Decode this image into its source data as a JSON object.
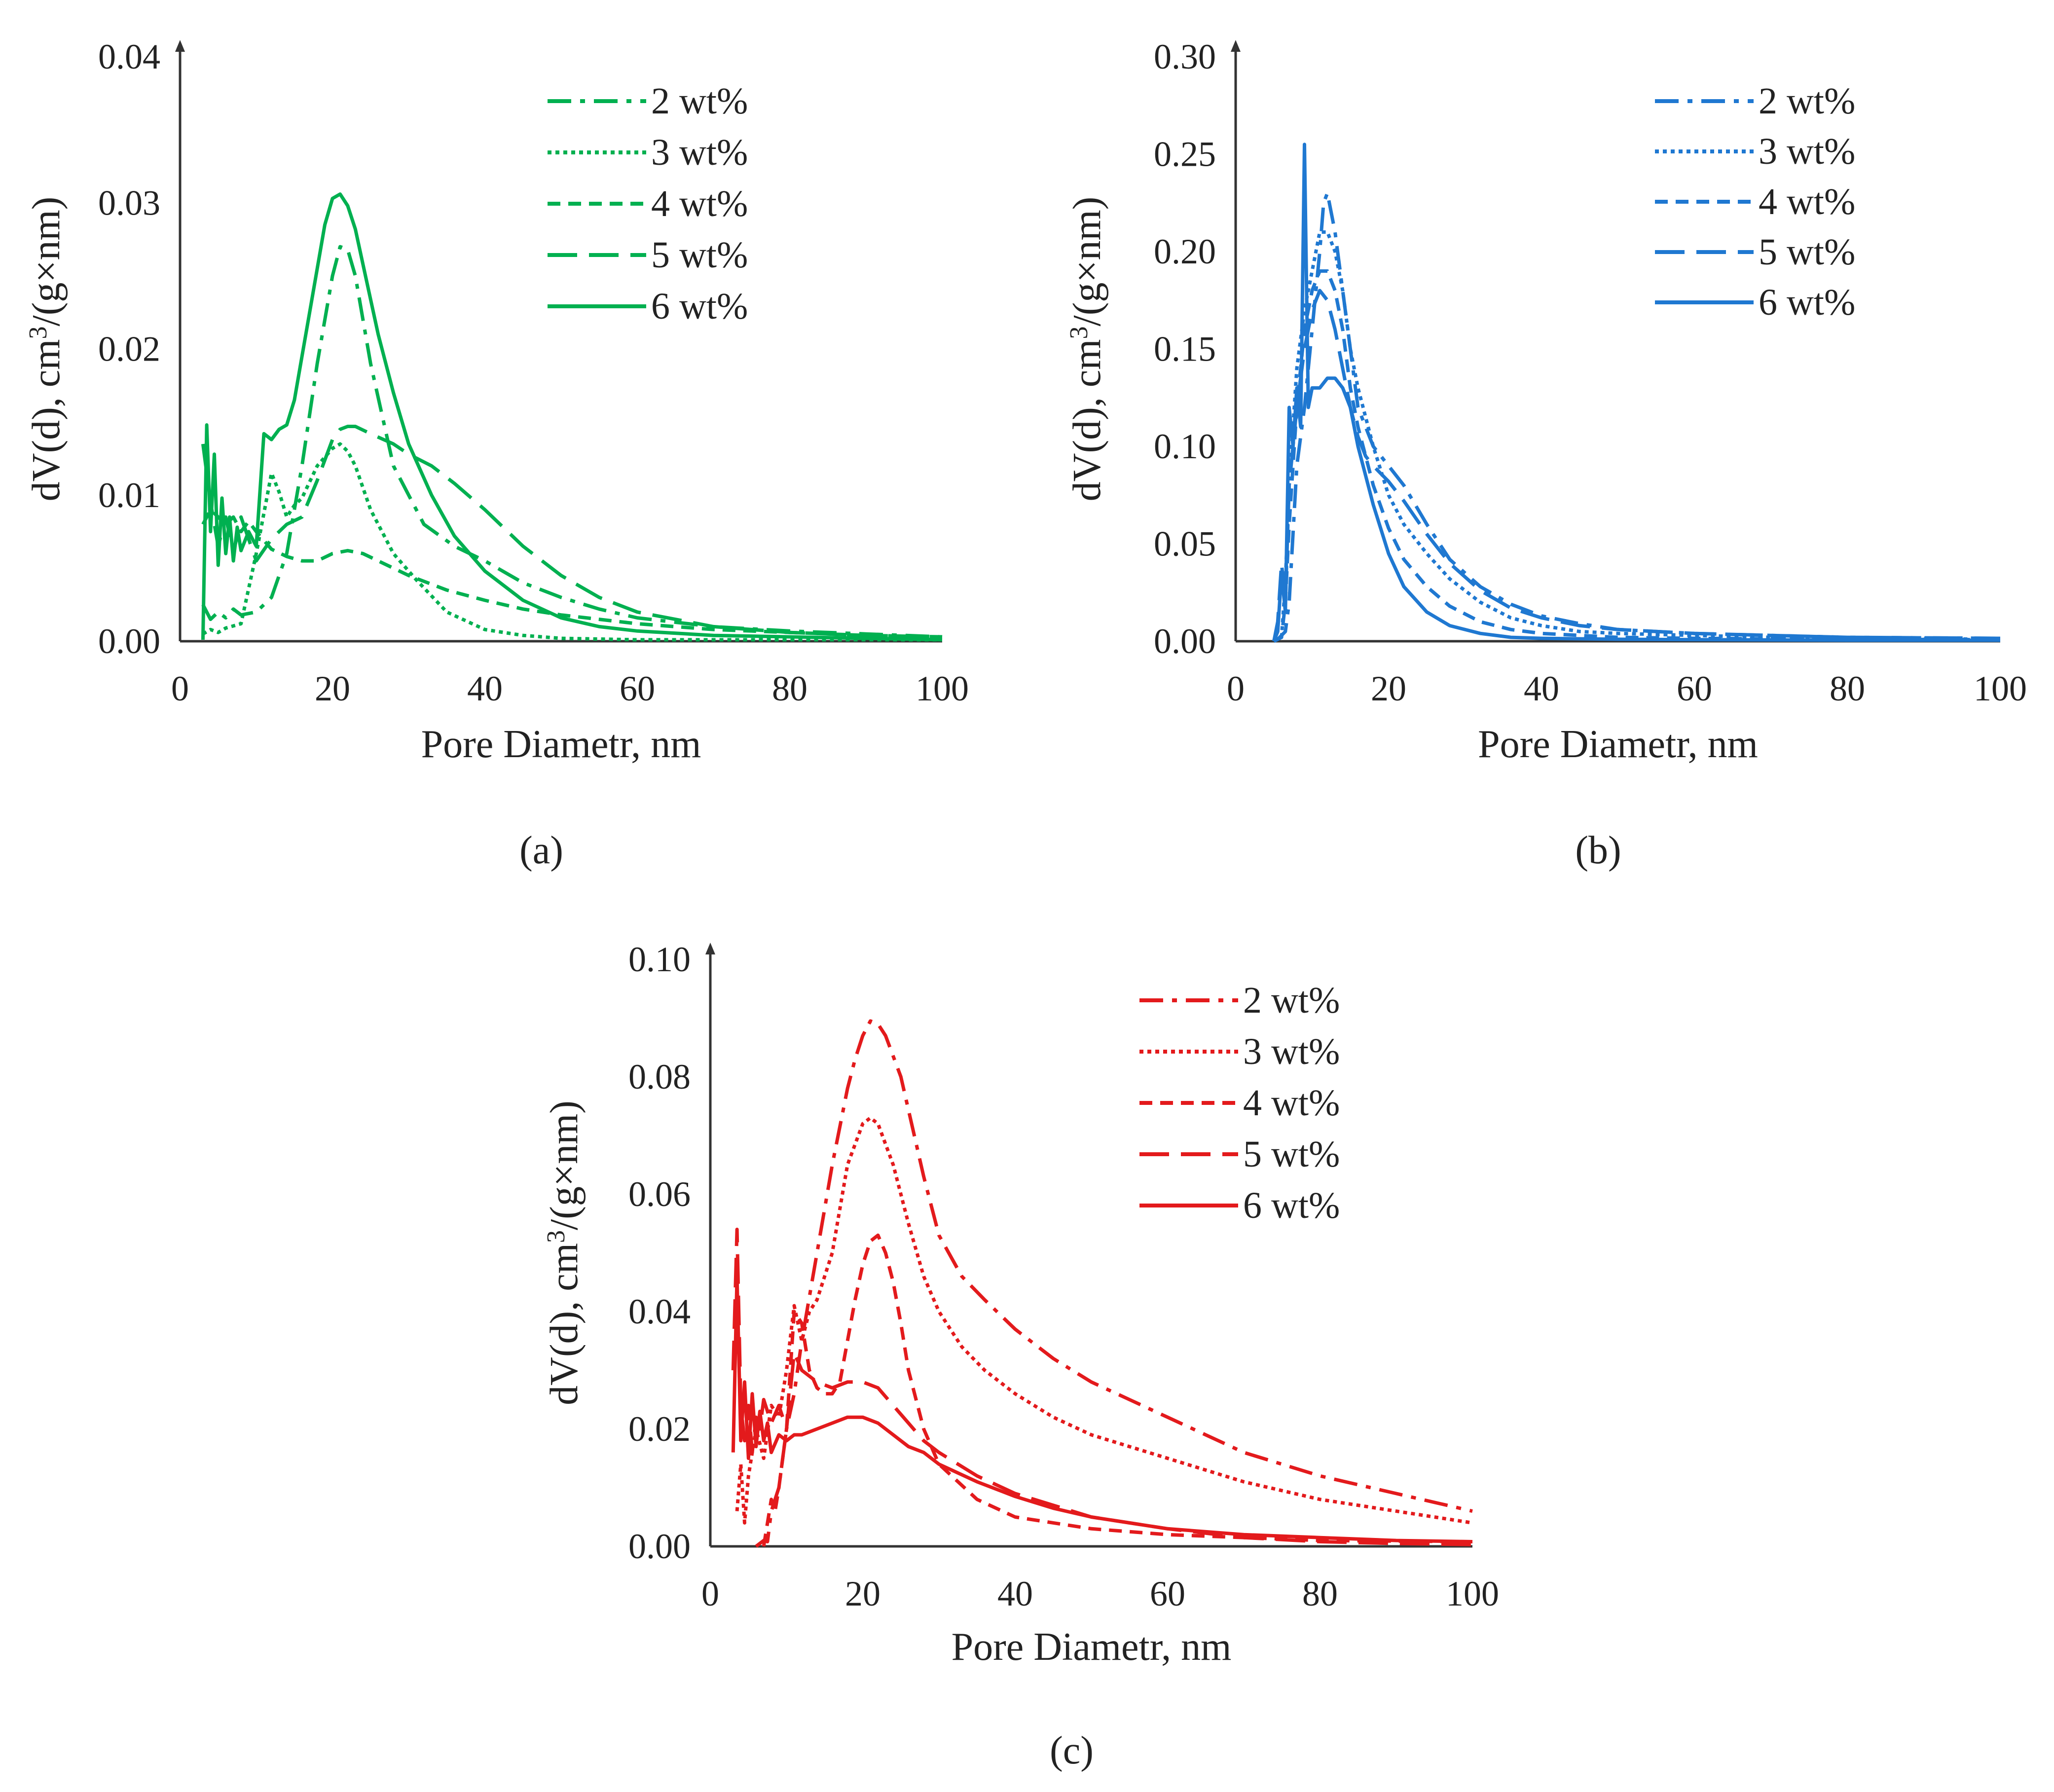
{
  "chart_data": [
    {
      "type": "line",
      "panel_label": "(a)",
      "xlabel": "Pore Diametr, nm",
      "ylabel_pre": "dV(d), cm",
      "ylabel_sup": "3",
      "ylabel_post": "/(g×nm)",
      "xlim": [
        0,
        100
      ],
      "ylim": [
        0,
        0.04
      ],
      "xticks": [
        "0",
        "20",
        "40",
        "60",
        "80",
        "100"
      ],
      "yticks": [
        "0.00",
        "0.01",
        "0.02",
        "0.03",
        "0.04"
      ],
      "color": "#00b050",
      "series": [
        {
          "name": "2 wt%",
          "dash": "dashdot",
          "x": [
            3,
            4,
            5,
            6,
            7,
            8,
            10,
            12,
            14,
            16,
            18,
            20,
            21,
            22,
            23,
            25,
            28,
            32,
            36,
            40,
            45,
            50,
            55,
            60,
            70,
            80,
            90,
            100
          ],
          "y": [
            0.0025,
            0.0015,
            0.002,
            0.0016,
            0.0022,
            0.0018,
            0.002,
            0.003,
            0.006,
            0.012,
            0.019,
            0.025,
            0.027,
            0.0268,
            0.025,
            0.019,
            0.012,
            0.008,
            0.0065,
            0.0055,
            0.004,
            0.003,
            0.0022,
            0.0016,
            0.001,
            0.0007,
            0.0005,
            0.0003
          ]
        },
        {
          "name": "3 wt%",
          "dash": "dot",
          "x": [
            3,
            4,
            5,
            6,
            8,
            10,
            12,
            13,
            14,
            15,
            16,
            18,
            20,
            21,
            22,
            23,
            25,
            28,
            31,
            35,
            40,
            45,
            50,
            60,
            70,
            80,
            100
          ],
          "y": [
            0.0005,
            0.0008,
            0.0006,
            0.0009,
            0.0012,
            0.006,
            0.0115,
            0.0102,
            0.0085,
            0.0093,
            0.0098,
            0.012,
            0.0132,
            0.0135,
            0.013,
            0.012,
            0.009,
            0.006,
            0.0042,
            0.002,
            0.0008,
            0.0004,
            0.0002,
            0.0001,
            0.0001,
            0.0001,
            0.0001
          ]
        },
        {
          "name": "4 wt%",
          "dash": "dash",
          "x": [
            3,
            4,
            5,
            6,
            7,
            8,
            9,
            10,
            12,
            14,
            16,
            18,
            20,
            22,
            24,
            26,
            30,
            35,
            40,
            45,
            50,
            60,
            70,
            80,
            90,
            100
          ],
          "y": [
            0.008,
            0.009,
            0.0085,
            0.008,
            0.0085,
            0.0075,
            0.0082,
            0.0075,
            0.0063,
            0.0058,
            0.0055,
            0.0055,
            0.006,
            0.0062,
            0.006,
            0.0055,
            0.0045,
            0.0035,
            0.0028,
            0.0022,
            0.0018,
            0.0012,
            0.0008,
            0.0006,
            0.0004,
            0.0003
          ]
        },
        {
          "name": "5 wt%",
          "dash": "longdash",
          "x": [
            3,
            4,
            5,
            6,
            7,
            8,
            10,
            12,
            14,
            16,
            18,
            20,
            21,
            22,
            23,
            25,
            28,
            30,
            33,
            36,
            40,
            45,
            50,
            55,
            60,
            70,
            80,
            90,
            100
          ],
          "y": [
            0.0135,
            0.0095,
            0.0065,
            0.0085,
            0.006,
            0.0085,
            0.0055,
            0.007,
            0.008,
            0.0085,
            0.011,
            0.0138,
            0.0145,
            0.0147,
            0.0147,
            0.0142,
            0.0135,
            0.0128,
            0.012,
            0.0108,
            0.009,
            0.0065,
            0.0045,
            0.003,
            0.002,
            0.001,
            0.0006,
            0.0004,
            0.0003
          ]
        },
        {
          "name": "6 wt%",
          "dash": "solid",
          "x": [
            3,
            3.5,
            4,
            4.5,
            5,
            5.5,
            6,
            6.5,
            7,
            7.5,
            8,
            9,
            10,
            11,
            12,
            13,
            14,
            15,
            16,
            17,
            18,
            19,
            20,
            21,
            22,
            23,
            24,
            26,
            28,
            30,
            33,
            36,
            40,
            45,
            50,
            55,
            60,
            70,
            80,
            90,
            100
          ],
          "y": [
            0.0001,
            0.0148,
            0.0075,
            0.0128,
            0.0052,
            0.0098,
            0.006,
            0.0085,
            0.0055,
            0.0078,
            0.0062,
            0.0075,
            0.0065,
            0.0142,
            0.0138,
            0.0145,
            0.0148,
            0.0165,
            0.0195,
            0.0225,
            0.0255,
            0.0285,
            0.0303,
            0.0306,
            0.0298,
            0.0282,
            0.0258,
            0.021,
            0.017,
            0.0135,
            0.01,
            0.0072,
            0.0048,
            0.0028,
            0.0016,
            0.001,
            0.0007,
            0.0004,
            0.0003,
            0.0002,
            0.0001
          ]
        }
      ]
    },
    {
      "type": "line",
      "panel_label": "(b)",
      "xlabel": "Pore Diametr, nm",
      "ylabel_pre": "dV(d), cm",
      "ylabel_sup": "3",
      "ylabel_post": "/(g×nm)",
      "xlim": [
        0,
        100
      ],
      "ylim": [
        0,
        0.3
      ],
      "xticks": [
        "0",
        "20",
        "40",
        "60",
        "80",
        "100"
      ],
      "yticks": [
        "0.00",
        "0.05",
        "0.10",
        "0.15",
        "0.20",
        "0.25",
        "0.30"
      ],
      "color": "#1f78d1",
      "series": [
        {
          "name": "2 wt%",
          "dash": "dashdot",
          "x": [
            5,
            5.5,
            6,
            6.5,
            7,
            8,
            9,
            10,
            11,
            11.5,
            12,
            13,
            14,
            15,
            16,
            18,
            20,
            22,
            25,
            28,
            32,
            36,
            40,
            45,
            50,
            60,
            70,
            80,
            100
          ],
          "y": [
            0,
            0.001,
            0.003,
            0.005,
            0.02,
            0.09,
            0.12,
            0.16,
            0.2,
            0.225,
            0.23,
            0.21,
            0.18,
            0.15,
            0.12,
            0.1,
            0.09,
            0.08,
            0.06,
            0.042,
            0.028,
            0.019,
            0.013,
            0.009,
            0.006,
            0.004,
            0.003,
            0.002,
            0.0015
          ]
        },
        {
          "name": "3 wt%",
          "dash": "dot",
          "x": [
            5,
            6,
            6.5,
            7,
            8,
            9,
            10,
            11,
            12,
            13,
            14,
            15,
            16,
            18,
            20,
            22,
            25,
            28,
            32,
            36,
            40,
            45,
            50,
            60,
            70,
            80,
            100
          ],
          "y": [
            0,
            0.002,
            0.03,
            0.08,
            0.14,
            0.17,
            0.19,
            0.21,
            0.21,
            0.2,
            0.18,
            0.15,
            0.13,
            0.1,
            0.075,
            0.06,
            0.045,
            0.032,
            0.02,
            0.012,
            0.008,
            0.005,
            0.004,
            0.003,
            0.002,
            0.0015,
            0.001
          ]
        },
        {
          "name": "4 wt%",
          "dash": "dash",
          "x": [
            5,
            6,
            6.5,
            7,
            8,
            9,
            10,
            11,
            12,
            13,
            14,
            15,
            16,
            18,
            20,
            22,
            25,
            28,
            32,
            36,
            40,
            50,
            60,
            80,
            100
          ],
          "y": [
            0,
            0.002,
            0.02,
            0.06,
            0.12,
            0.16,
            0.18,
            0.19,
            0.19,
            0.18,
            0.16,
            0.13,
            0.11,
            0.08,
            0.058,
            0.042,
            0.028,
            0.018,
            0.01,
            0.006,
            0.004,
            0.002,
            0.0015,
            0.001,
            0.0008
          ]
        },
        {
          "name": "5 wt%",
          "dash": "longdash",
          "x": [
            5,
            5.5,
            6,
            6.5,
            7,
            8,
            9,
            10,
            11,
            12,
            13,
            14,
            15,
            16,
            17,
            18,
            20,
            22,
            25,
            28,
            32,
            36,
            40,
            45,
            50,
            60,
            70,
            80,
            100
          ],
          "y": [
            0,
            0.01,
            0.04,
            0.02,
            0.08,
            0.12,
            0.15,
            0.17,
            0.18,
            0.175,
            0.16,
            0.14,
            0.12,
            0.105,
            0.095,
            0.09,
            0.082,
            0.072,
            0.055,
            0.04,
            0.026,
            0.017,
            0.012,
            0.008,
            0.006,
            0.004,
            0.003,
            0.002,
            0.0015
          ]
        },
        {
          "name": "6 wt%",
          "dash": "solid",
          "x": [
            5,
            5.5,
            6,
            6.5,
            7,
            7.5,
            8,
            8.5,
            9,
            9.5,
            10,
            11,
            12,
            13,
            14,
            15,
            16,
            18,
            20,
            22,
            25,
            28,
            32,
            36,
            40,
            50,
            60,
            80,
            100
          ],
          "y": [
            0,
            0.005,
            0.035,
            0.015,
            0.12,
            0.1,
            0.13,
            0.11,
            0.255,
            0.12,
            0.13,
            0.13,
            0.135,
            0.135,
            0.13,
            0.12,
            0.1,
            0.07,
            0.045,
            0.028,
            0.015,
            0.008,
            0.004,
            0.002,
            0.0015,
            0.001,
            0.0008,
            0.0005,
            0.0005
          ]
        }
      ]
    },
    {
      "type": "line",
      "panel_label": "(c)",
      "xlabel": "Pore Diametr, nm",
      "ylabel_pre": "dV(d), cm",
      "ylabel_sup": "3",
      "ylabel_post": "/(g×nm)",
      "xlim": [
        0,
        100
      ],
      "ylim": [
        0,
        0.1
      ],
      "xticks": [
        "0",
        "20",
        "40",
        "60",
        "80",
        "100"
      ],
      "yticks": [
        "0.00",
        "0.02",
        "0.04",
        "0.06",
        "0.08",
        "0.10"
      ],
      "color": "#e31a1c",
      "series": [
        {
          "name": "2 wt%",
          "dash": "dashdot",
          "x": [
            6,
            7,
            7.5,
            8,
            9,
            10,
            11,
            12,
            14,
            16,
            18,
            19,
            20,
            21,
            22,
            23,
            25,
            28,
            30,
            33,
            36,
            40,
            45,
            50,
            55,
            60,
            65,
            70,
            80,
            90,
            100
          ],
          "y": [
            0,
            0.001,
            0.0008,
            0.006,
            0.01,
            0.02,
            0.026,
            0.035,
            0.05,
            0.065,
            0.078,
            0.083,
            0.087,
            0.0895,
            0.089,
            0.087,
            0.08,
            0.063,
            0.053,
            0.046,
            0.042,
            0.037,
            0.032,
            0.028,
            0.025,
            0.022,
            0.019,
            0.016,
            0.012,
            0.009,
            0.006
          ]
        },
        {
          "name": "3 wt%",
          "dash": "dot",
          "x": [
            3.5,
            4,
            4.5,
            5,
            6,
            7,
            8,
            9,
            10,
            11,
            12,
            13,
            14,
            16,
            18,
            20,
            21,
            22,
            24,
            26,
            28,
            30,
            33,
            36,
            40,
            45,
            50,
            60,
            70,
            80,
            90,
            100
          ],
          "y": [
            0.006,
            0.014,
            0.004,
            0.012,
            0.02,
            0.015,
            0.024,
            0.022,
            0.03,
            0.041,
            0.035,
            0.04,
            0.042,
            0.05,
            0.065,
            0.072,
            0.073,
            0.072,
            0.065,
            0.055,
            0.046,
            0.04,
            0.034,
            0.03,
            0.026,
            0.022,
            0.019,
            0.015,
            0.011,
            0.008,
            0.006,
            0.004
          ]
        },
        {
          "name": "4 wt%",
          "dash": "dash",
          "x": [
            7,
            8,
            8.5,
            9,
            10,
            10.5,
            11,
            12,
            13,
            14,
            15,
            16,
            17,
            18,
            19,
            20,
            21,
            22,
            23,
            24,
            25,
            26,
            28,
            30,
            35,
            40,
            50,
            60,
            80,
            100
          ],
          "y": [
            0,
            0.008,
            0.006,
            0.01,
            0.02,
            0.03,
            0.04,
            0.038,
            0.03,
            0.027,
            0.026,
            0.026,
            0.028,
            0.035,
            0.042,
            0.048,
            0.052,
            0.053,
            0.05,
            0.045,
            0.038,
            0.03,
            0.02,
            0.014,
            0.008,
            0.005,
            0.003,
            0.002,
            0.001,
            0.0008
          ]
        },
        {
          "name": "5 wt%",
          "dash": "longdash",
          "x": [
            3,
            3.5,
            4,
            4.5,
            5,
            5.5,
            6,
            6.5,
            7,
            8,
            9,
            10,
            11,
            12,
            14,
            16,
            18,
            20,
            22,
            24,
            26,
            28,
            30,
            35,
            40,
            50,
            60,
            70,
            80,
            90,
            100
          ],
          "y": [
            0.03,
            0.054,
            0.024,
            0.018,
            0.024,
            0.016,
            0.022,
            0.02,
            0.025,
            0.021,
            0.024,
            0.02,
            0.033,
            0.03,
            0.028,
            0.027,
            0.028,
            0.028,
            0.027,
            0.024,
            0.021,
            0.018,
            0.016,
            0.012,
            0.009,
            0.005,
            0.003,
            0.0015,
            0.0008,
            0.0005,
            0.0003
          ]
        },
        {
          "name": "6 wt%",
          "dash": "solid",
          "x": [
            3,
            3.5,
            4,
            4.5,
            5,
            5.5,
            6,
            6.5,
            7,
            7.5,
            8,
            9,
            10,
            11,
            12,
            14,
            16,
            18,
            20,
            22,
            24,
            26,
            28,
            30,
            35,
            40,
            45,
            50,
            60,
            70,
            80,
            90,
            100
          ],
          "y": [
            0.016,
            0.046,
            0.018,
            0.028,
            0.015,
            0.026,
            0.017,
            0.023,
            0.018,
            0.021,
            0.016,
            0.019,
            0.018,
            0.019,
            0.019,
            0.02,
            0.021,
            0.022,
            0.022,
            0.021,
            0.019,
            0.017,
            0.016,
            0.014,
            0.011,
            0.0085,
            0.0065,
            0.005,
            0.003,
            0.002,
            0.0015,
            0.001,
            0.0008
          ]
        }
      ]
    }
  ]
}
